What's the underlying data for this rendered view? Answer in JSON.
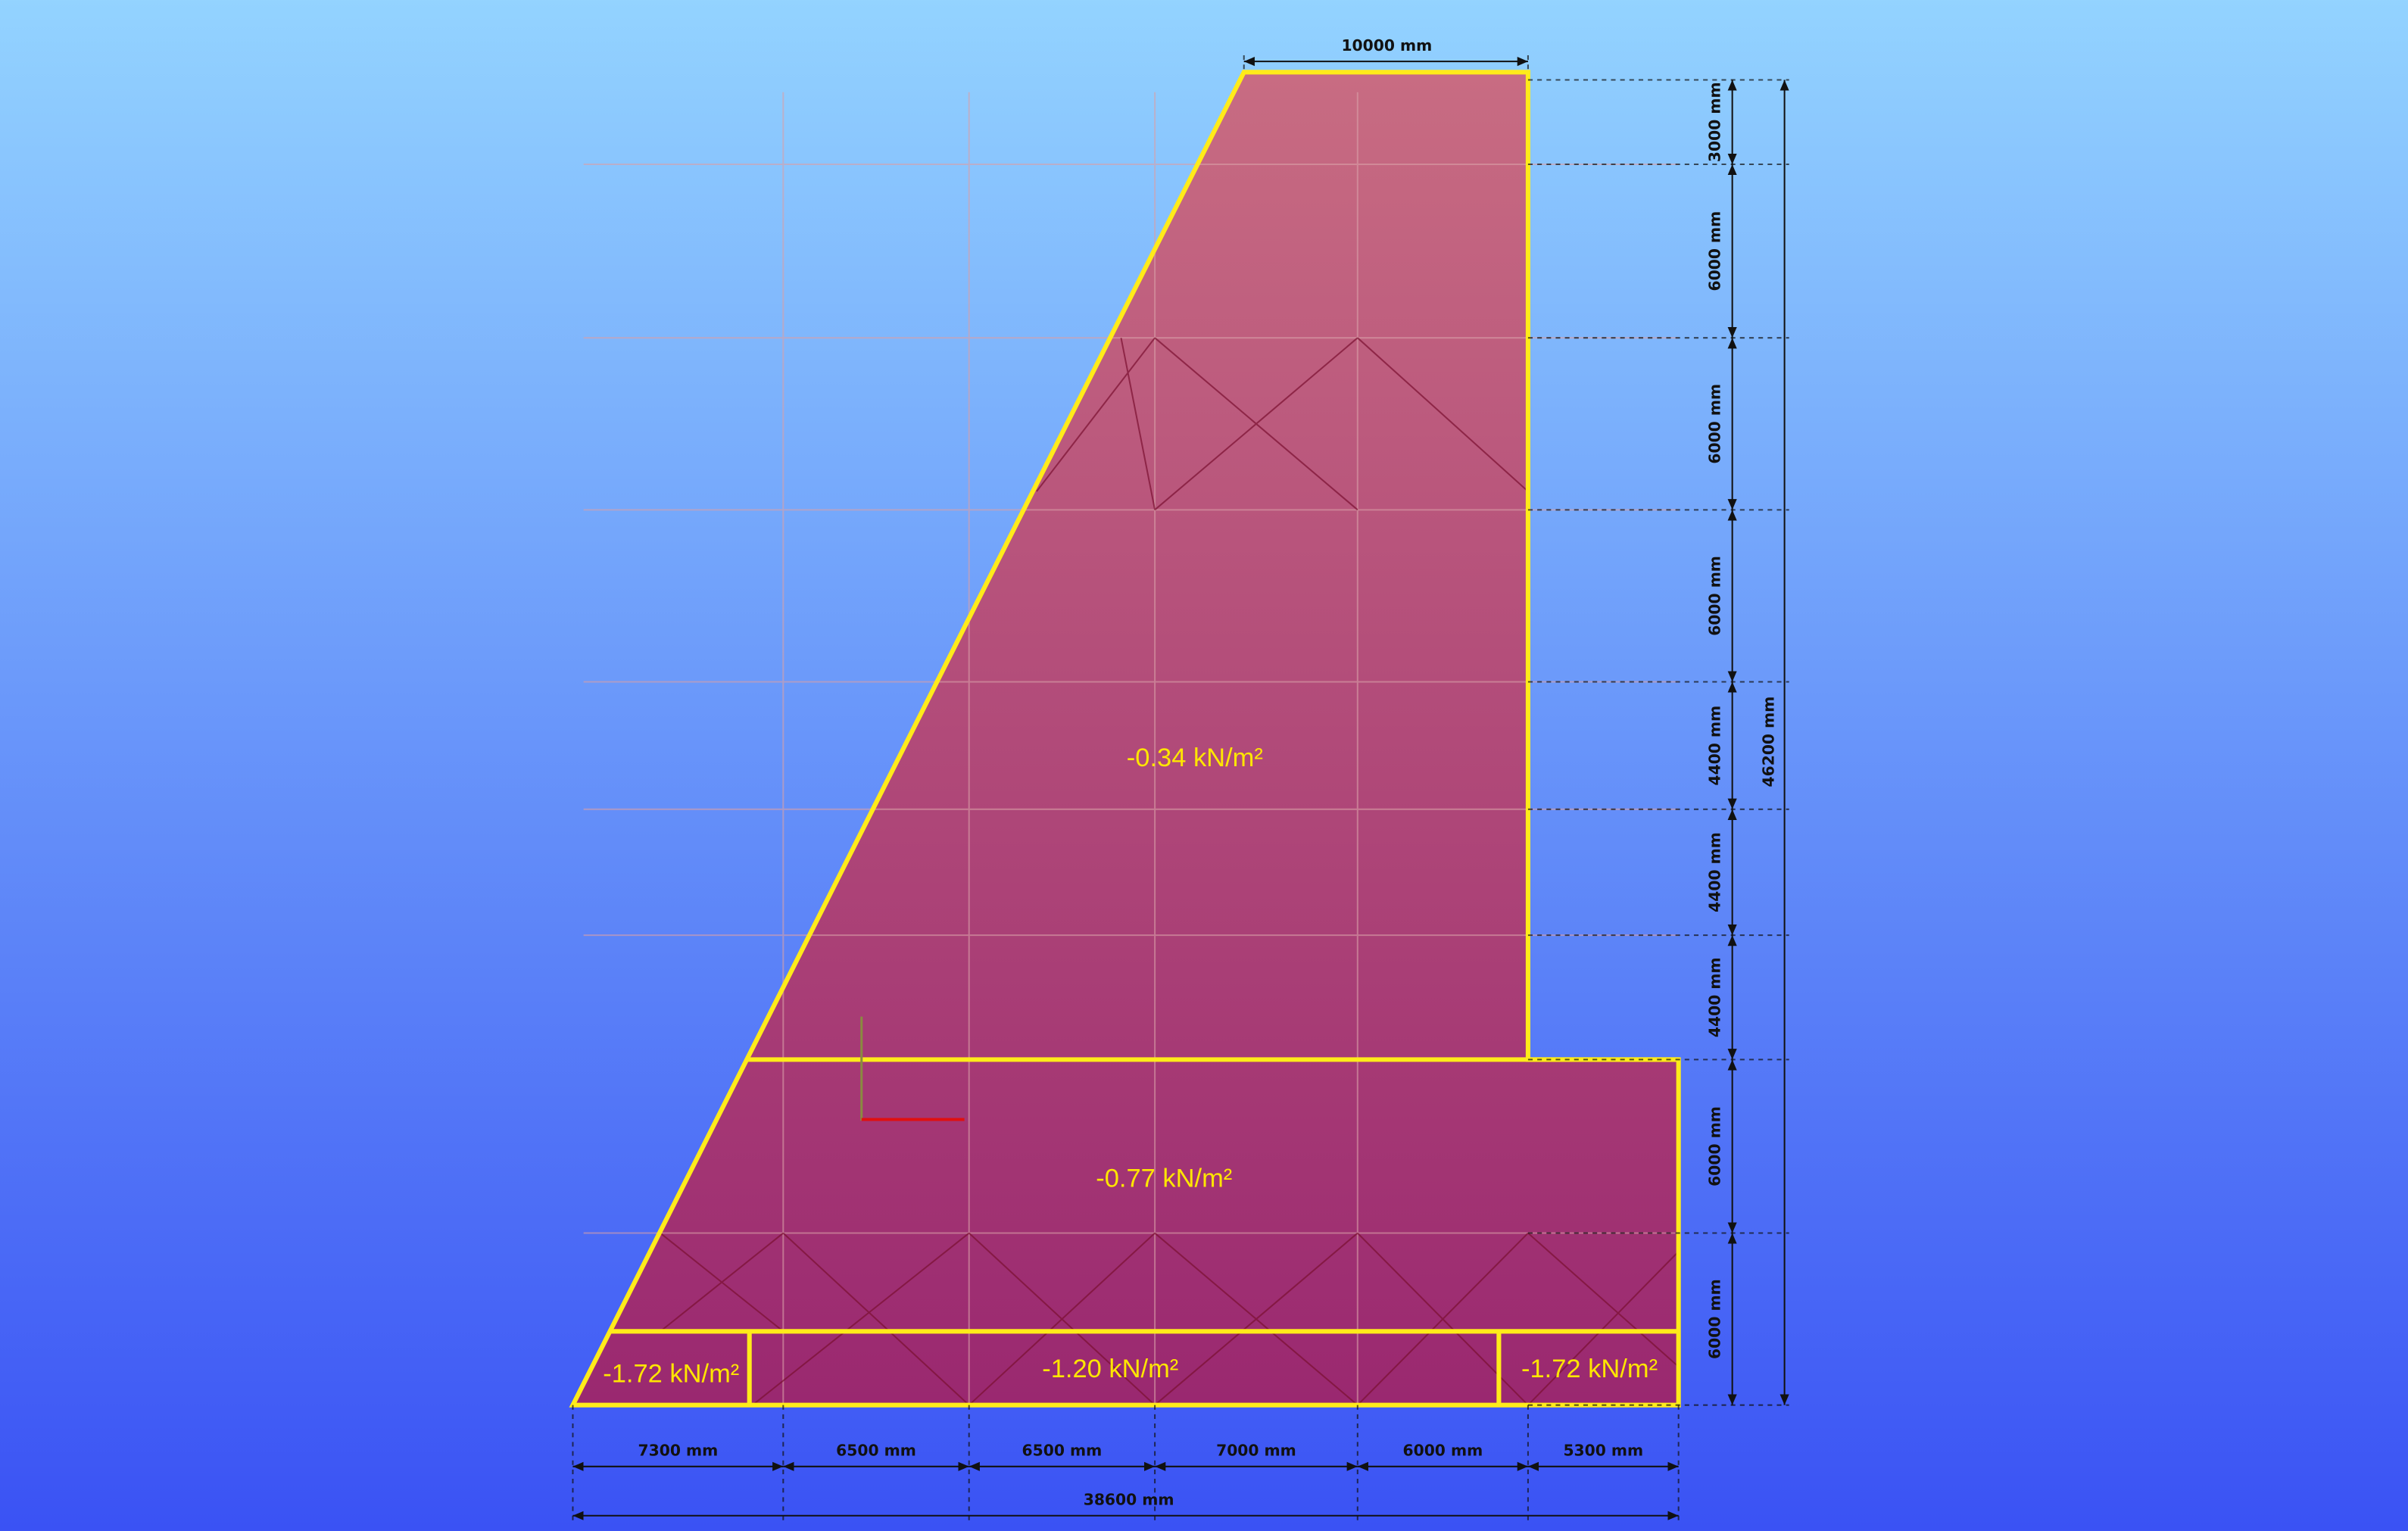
{
  "loads": [
    {
      "label": "-0.34 kN/m²"
    },
    {
      "label": "-0.77 kN/m²"
    },
    {
      "label": "-1.72 kN/m²"
    },
    {
      "label": "-1.20 kN/m²"
    },
    {
      "label": "-1.72 kN/m²"
    }
  ],
  "dimensions": {
    "top": "10000 mm",
    "right": [
      "3000 mm",
      "6000 mm",
      "6000 mm",
      "6000 mm",
      "4400 mm",
      "4400 mm",
      "4400 mm",
      "6000 mm",
      "6000 mm"
    ],
    "right_total": "46200 mm",
    "bottom": [
      "7300 mm",
      "6500 mm",
      "6500 mm",
      "7000 mm",
      "6000 mm",
      "5300 mm"
    ],
    "bottom_total": "38600 mm"
  }
}
